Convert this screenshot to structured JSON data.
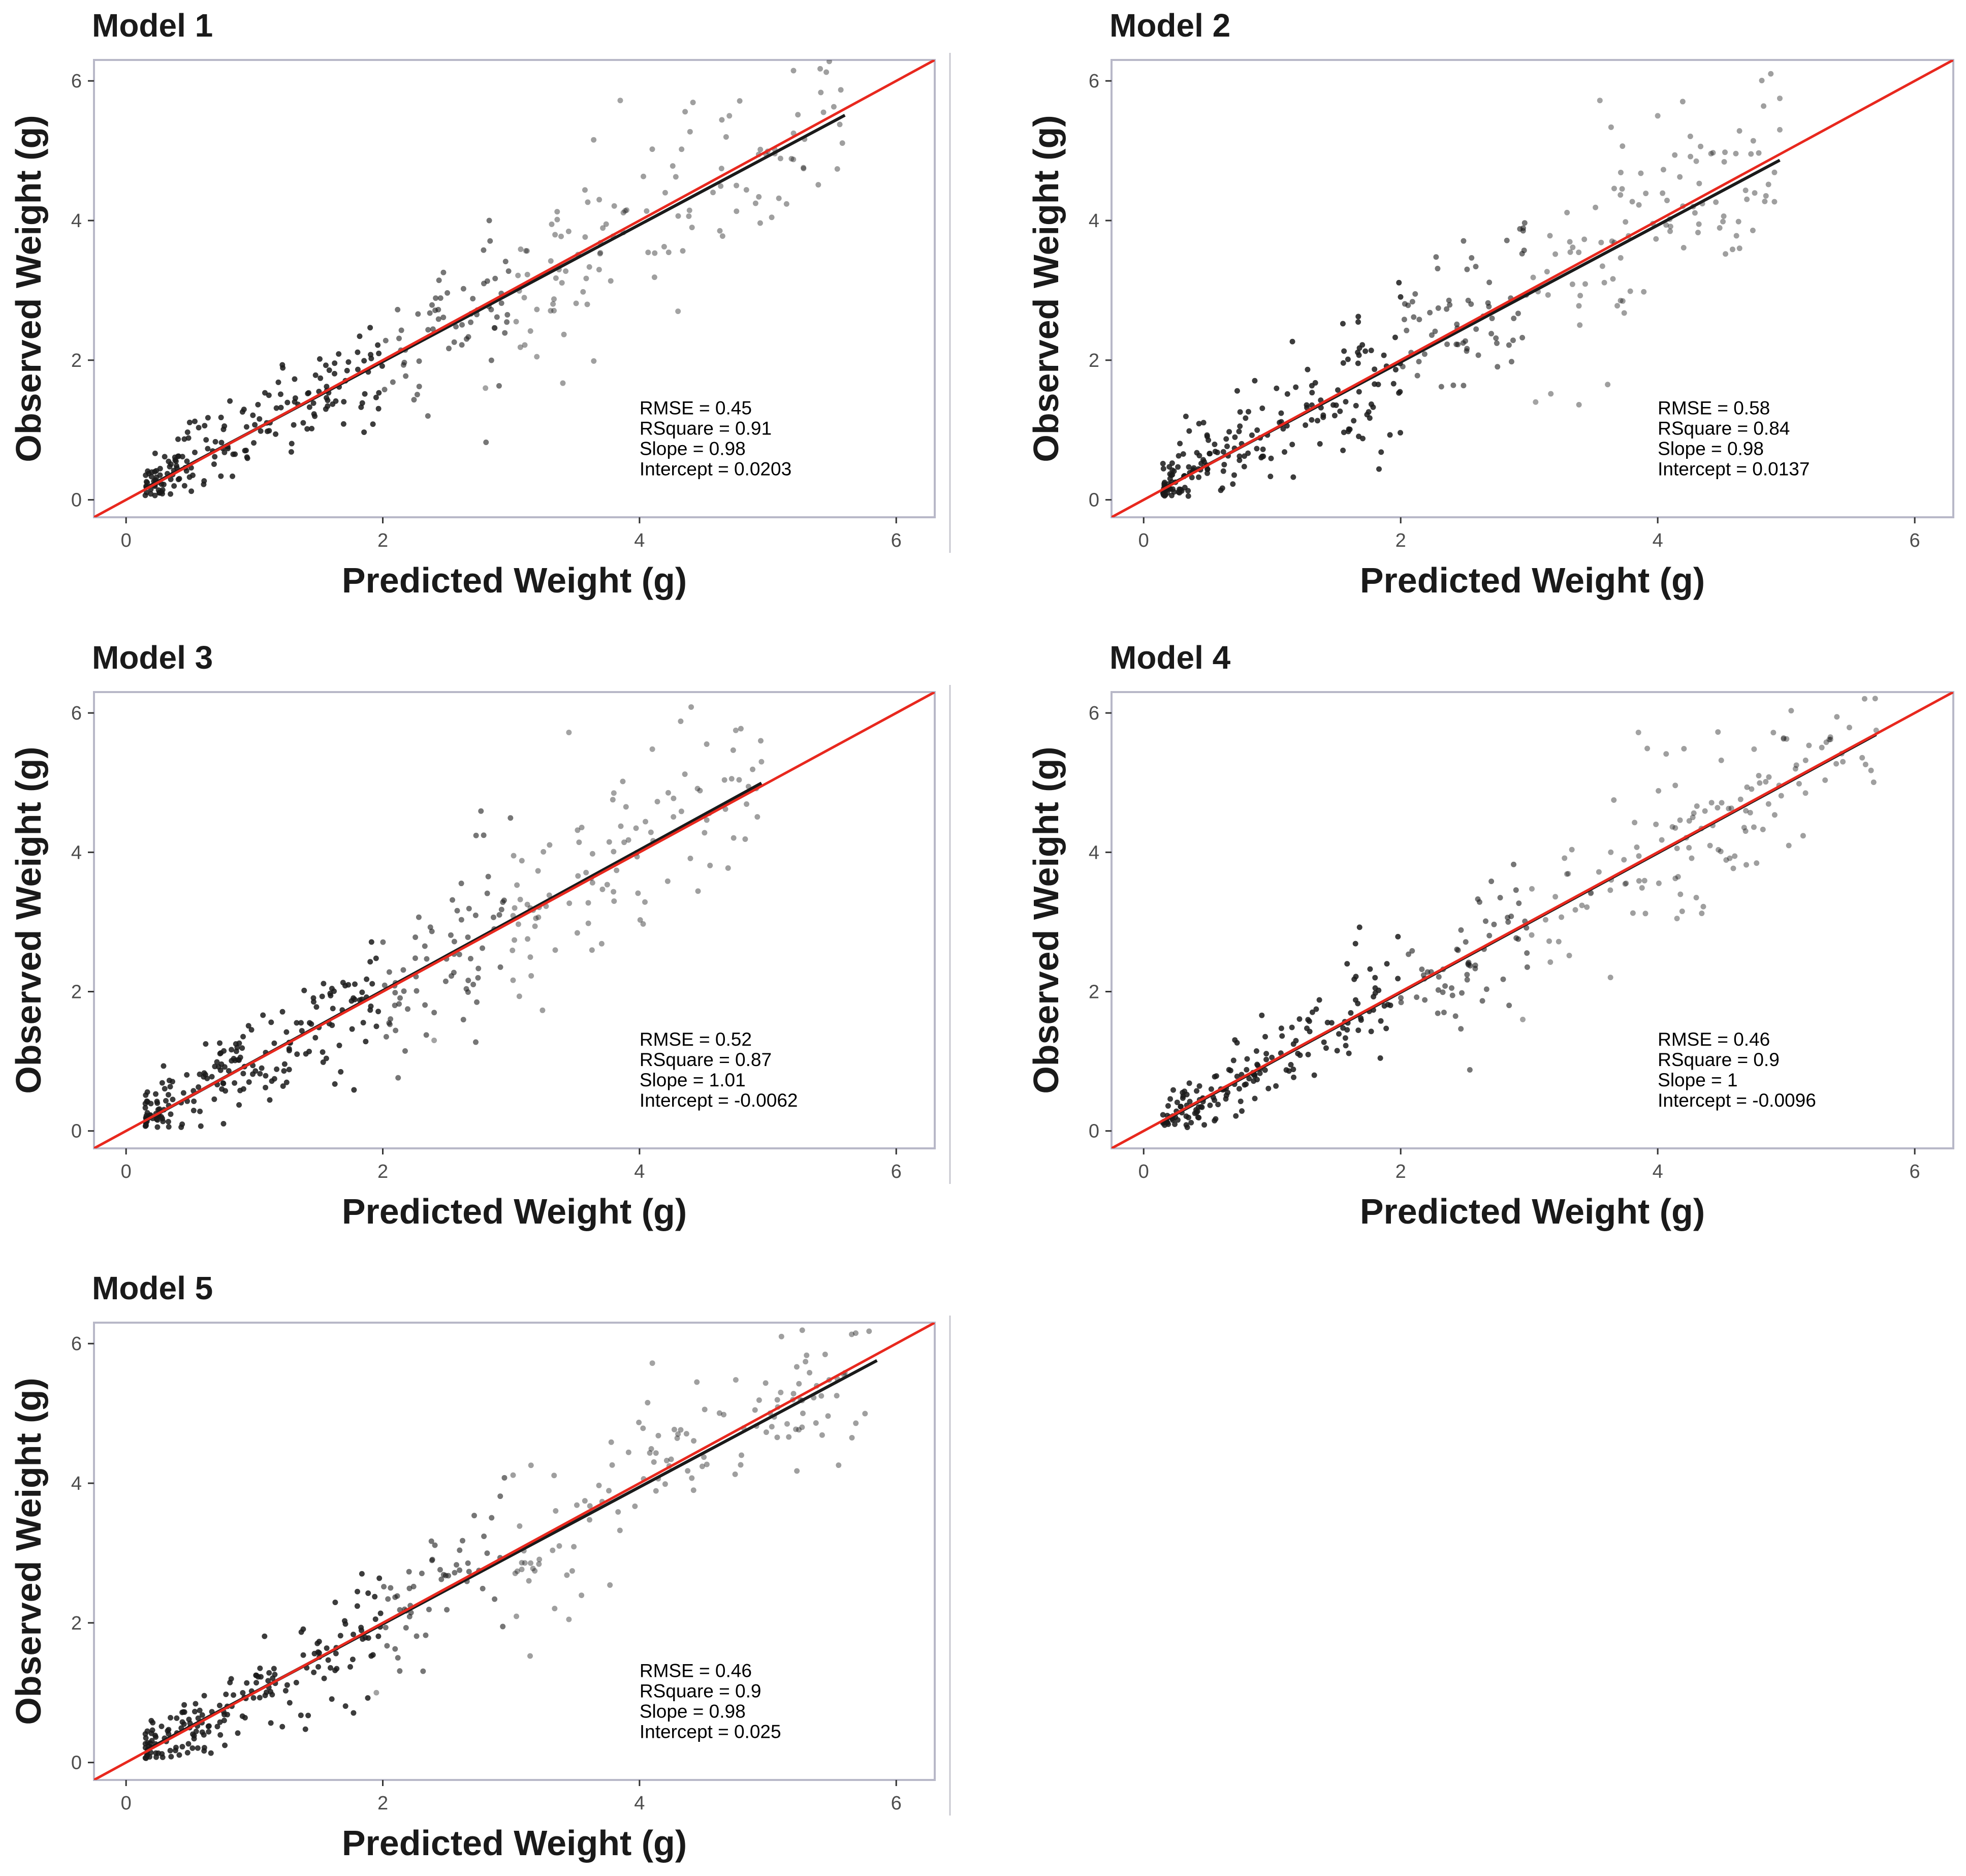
{
  "figure": {
    "layout": "3 rows x 2 columns, 5 panels"
  },
  "chart_data": [
    {
      "type": "scatter",
      "title": "Model 1",
      "xlabel": "Predicted Weight (g)",
      "ylabel": "Observed Weight (g)",
      "xlim": [
        -0.25,
        6.3
      ],
      "ylim": [
        -0.25,
        6.3
      ],
      "xticks": [
        0,
        2,
        4,
        6
      ],
      "yticks": [
        0,
        2,
        4,
        6
      ],
      "xtick_labels": [
        "0",
        "2",
        "4",
        "6"
      ],
      "ytick_labels": [
        "0",
        "2",
        "4",
        "6"
      ],
      "grid": false,
      "stats": [
        "RMSE = 0.45",
        "RSquare = 0.91",
        "Slope = 0.98",
        "Intercept = 0.0203"
      ],
      "reference_line": {
        "name": "1:1 line",
        "slope": 1,
        "intercept": 0,
        "color": "#e8281e"
      },
      "fit_line": {
        "name": "regression fit",
        "slope": 0.98,
        "intercept": 0.0203,
        "x_range": [
          0.15,
          5.6
        ],
        "color": "#1a1a1a"
      },
      "point_color": "#1a1a1a",
      "points_generated_from_fit": {
        "count": 360,
        "x_min": 0.15,
        "x_max": 5.6,
        "residual_sd": 0.45,
        "seed": 11
      },
      "highlighted_points": [
        [
          3.85,
          5.72
        ],
        [
          4.7,
          5.5
        ],
        [
          5.2,
          5.25
        ],
        [
          4.3,
          2.7
        ],
        [
          3.2,
          2.05
        ],
        [
          2.8,
          1.6
        ]
      ]
    },
    {
      "type": "scatter",
      "title": "Model 2",
      "xlabel": "Predicted Weight (g)",
      "ylabel": "Observed Weight (g)",
      "xlim": [
        -0.25,
        6.3
      ],
      "ylim": [
        -0.25,
        6.3
      ],
      "xticks": [
        0,
        2,
        4,
        6
      ],
      "yticks": [
        0,
        2,
        4,
        6
      ],
      "xtick_labels": [
        "0",
        "2",
        "4",
        "6"
      ],
      "ytick_labels": [
        "0",
        "2",
        "4",
        "6"
      ],
      "grid": false,
      "stats": [
        "RMSE = 0.58",
        "RSquare = 0.84",
        "Slope = 0.98",
        "Intercept = 0.0137"
      ],
      "reference_line": {
        "name": "1:1 line",
        "slope": 1,
        "intercept": 0,
        "color": "#e8281e"
      },
      "fit_line": {
        "name": "regression fit",
        "slope": 0.98,
        "intercept": 0.0137,
        "x_range": [
          0.15,
          4.95
        ],
        "color": "#1a1a1a"
      },
      "point_color": "#1a1a1a",
      "points_generated_from_fit": {
        "count": 360,
        "x_min": 0.15,
        "x_max": 4.95,
        "residual_sd": 0.58,
        "seed": 23
      },
      "highlighted_points": [
        [
          3.55,
          5.72
        ],
        [
          4.0,
          5.5
        ],
        [
          4.95,
          5.75
        ],
        [
          4.95,
          5.3
        ],
        [
          4.3,
          4.85
        ],
        [
          3.05,
          1.4
        ]
      ]
    },
    {
      "type": "scatter",
      "title": "Model 3",
      "xlabel": "Predicted Weight (g)",
      "ylabel": "Observed Weight (g)",
      "xlim": [
        -0.25,
        6.3
      ],
      "ylim": [
        -0.25,
        6.3
      ],
      "xticks": [
        0,
        2,
        4,
        6
      ],
      "yticks": [
        0,
        2,
        4,
        6
      ],
      "xtick_labels": [
        "0",
        "2",
        "4",
        "6"
      ],
      "ytick_labels": [
        "0",
        "2",
        "4",
        "6"
      ],
      "grid": false,
      "stats": [
        "RMSE = 0.52",
        "RSquare = 0.87",
        "Slope = 1.01",
        "Intercept = -0.0062"
      ],
      "reference_line": {
        "name": "1:1 line",
        "slope": 1,
        "intercept": 0,
        "color": "#e8281e"
      },
      "fit_line": {
        "name": "regression fit",
        "slope": 1.01,
        "intercept": -0.0062,
        "x_range": [
          0.15,
          4.95
        ],
        "color": "#1a1a1a"
      },
      "point_color": "#1a1a1a",
      "points_generated_from_fit": {
        "count": 360,
        "x_min": 0.15,
        "x_max": 4.95,
        "residual_sd": 0.52,
        "seed": 37
      },
      "highlighted_points": [
        [
          3.45,
          5.72
        ],
        [
          4.1,
          5.48
        ],
        [
          4.75,
          5.75
        ],
        [
          4.95,
          5.3
        ],
        [
          3.8,
          4.85
        ],
        [
          2.4,
          1.3
        ]
      ]
    },
    {
      "type": "scatter",
      "title": "Model 4",
      "xlabel": "Predicted Weight (g)",
      "ylabel": "Observed Weight (g)",
      "xlim": [
        -0.25,
        6.3
      ],
      "ylim": [
        -0.25,
        6.3
      ],
      "xticks": [
        0,
        2,
        4,
        6
      ],
      "yticks": [
        0,
        2,
        4,
        6
      ],
      "xtick_labels": [
        "0",
        "2",
        "4",
        "6"
      ],
      "ytick_labels": [
        "0",
        "2",
        "4",
        "6"
      ],
      "grid": false,
      "stats": [
        "RMSE = 0.46",
        "RSquare = 0.9",
        "Slope = 1",
        "Intercept = -0.0096"
      ],
      "reference_line": {
        "name": "1:1 line",
        "slope": 1,
        "intercept": 0,
        "color": "#e8281e"
      },
      "fit_line": {
        "name": "regression fit",
        "slope": 1.0,
        "intercept": -0.0096,
        "x_range": [
          0.15,
          5.7
        ],
        "color": "#1a1a1a"
      },
      "point_color": "#1a1a1a",
      "points_generated_from_fit": {
        "count": 360,
        "x_min": 0.15,
        "x_max": 5.7,
        "residual_sd": 0.46,
        "seed": 41
      },
      "highlighted_points": [
        [
          3.85,
          5.72
        ],
        [
          4.75,
          5.48
        ],
        [
          5.7,
          5.75
        ],
        [
          5.15,
          4.85
        ],
        [
          4.15,
          3.05
        ],
        [
          2.95,
          1.6
        ]
      ]
    },
    {
      "type": "scatter",
      "title": "Model 5",
      "xlabel": "Predicted Weight (g)",
      "ylabel": "Observed Weight (g)",
      "xlim": [
        -0.25,
        6.3
      ],
      "ylim": [
        -0.25,
        6.3
      ],
      "xticks": [
        0,
        2,
        4,
        6
      ],
      "yticks": [
        0,
        2,
        4,
        6
      ],
      "xtick_labels": [
        "0",
        "2",
        "4",
        "6"
      ],
      "ytick_labels": [
        "0",
        "2",
        "4",
        "6"
      ],
      "grid": false,
      "stats": [
        "RMSE = 0.46",
        "RSquare = 0.9",
        "Slope = 0.98",
        "Intercept = 0.025"
      ],
      "reference_line": {
        "name": "1:1 line",
        "slope": 1,
        "intercept": 0,
        "color": "#e8281e"
      },
      "fit_line": {
        "name": "regression fit",
        "slope": 0.98,
        "intercept": 0.025,
        "x_range": [
          0.15,
          5.85
        ],
        "color": "#1a1a1a"
      },
      "point_color": "#1a1a1a",
      "points_generated_from_fit": {
        "count": 360,
        "x_min": 0.15,
        "x_max": 5.85,
        "residual_sd": 0.46,
        "seed": 53
      },
      "highlighted_points": [
        [
          4.1,
          5.72
        ],
        [
          4.75,
          5.48
        ],
        [
          5.1,
          5.3
        ],
        [
          5.15,
          4.85
        ],
        [
          3.45,
          2.05
        ],
        [
          1.95,
          1.0
        ]
      ]
    }
  ]
}
